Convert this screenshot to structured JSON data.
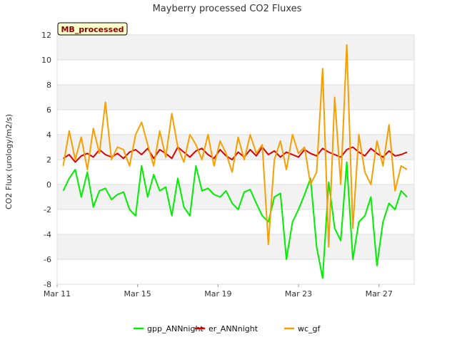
{
  "chart_data": {
    "type": "line",
    "title": "Mayberry processed CO2 Fluxes",
    "ylabel": "CO2 Flux (urology/m2/s)",
    "xlabel": "",
    "badge": "MB_processed",
    "ylim": [
      -8,
      12
    ],
    "yticks": [
      -8,
      -6,
      -4,
      -2,
      0,
      2,
      4,
      6,
      8,
      10,
      12
    ],
    "x_ticks": [
      {
        "day": 11,
        "label": "Mar 11"
      },
      {
        "day": 15,
        "label": "Mar 15"
      },
      {
        "day": 19,
        "label": "Mar 19"
      },
      {
        "day": 23,
        "label": "Mar 23"
      },
      {
        "day": 27,
        "label": "Mar 27"
      }
    ],
    "xlim_days": [
      11.0,
      28.75
    ],
    "grid": true,
    "legend_position": "bottom",
    "series": [
      {
        "name": "gpp_ANNnight",
        "color": "#00ee00",
        "x": [
          11.3,
          11.6,
          11.9,
          12.2,
          12.5,
          12.8,
          13.1,
          13.4,
          13.7,
          14.0,
          14.3,
          14.6,
          14.9,
          15.2,
          15.5,
          15.8,
          16.1,
          16.4,
          16.7,
          17.0,
          17.3,
          17.6,
          17.9,
          18.2,
          18.5,
          18.8,
          19.1,
          19.4,
          19.7,
          20.0,
          20.3,
          20.6,
          20.9,
          21.2,
          21.5,
          21.8,
          22.1,
          22.4,
          22.7,
          23.0,
          23.3,
          23.6,
          23.9,
          24.2,
          24.5,
          24.8,
          25.1,
          25.4,
          25.7,
          26.0,
          26.3,
          26.6,
          26.9,
          27.2,
          27.5,
          27.8,
          28.1,
          28.4
        ],
        "y": [
          -0.5,
          0.5,
          1.2,
          -1.0,
          1.0,
          -1.8,
          -0.5,
          -0.3,
          -1.2,
          -0.8,
          -0.6,
          -2.0,
          -2.5,
          1.5,
          -1.0,
          0.8,
          -0.5,
          -0.2,
          -2.5,
          0.5,
          -1.8,
          -2.5,
          1.5,
          -0.5,
          -0.3,
          -0.8,
          -1.0,
          -0.5,
          -1.5,
          -2.0,
          -0.6,
          -0.4,
          -1.5,
          -2.5,
          -3.0,
          -1.0,
          -0.7,
          -6.0,
          -3.0,
          -2.0,
          -0.8,
          0.5,
          -5.0,
          -7.5,
          0.2,
          -3.5,
          -4.5,
          1.8,
          -6.0,
          -3.0,
          -2.5,
          -1.0,
          -6.5,
          -3.0,
          -1.5,
          -2.0,
          -0.5,
          -1.0
        ]
      },
      {
        "name": "er_ANNnight",
        "color": "#dd0000",
        "x": [
          11.3,
          11.6,
          11.9,
          12.2,
          12.5,
          12.8,
          13.1,
          13.4,
          13.7,
          14.0,
          14.3,
          14.6,
          14.9,
          15.2,
          15.5,
          15.8,
          16.1,
          16.4,
          16.7,
          17.0,
          17.3,
          17.6,
          17.9,
          18.2,
          18.5,
          18.8,
          19.1,
          19.4,
          19.7,
          20.0,
          20.3,
          20.6,
          20.9,
          21.2,
          21.5,
          21.8,
          22.1,
          22.4,
          22.7,
          23.0,
          23.3,
          23.6,
          23.9,
          24.2,
          24.5,
          24.8,
          25.1,
          25.4,
          25.7,
          26.0,
          26.3,
          26.6,
          26.9,
          27.2,
          27.5,
          27.8,
          28.1,
          28.4
        ],
        "y": [
          2.1,
          2.4,
          1.8,
          2.3,
          2.5,
          2.2,
          2.8,
          2.4,
          2.2,
          2.5,
          2.1,
          2.6,
          2.8,
          2.4,
          2.9,
          2.1,
          2.8,
          2.5,
          2.1,
          3.0,
          2.6,
          2.2,
          2.7,
          2.9,
          2.4,
          2.1,
          2.8,
          2.3,
          2.0,
          2.6,
          2.2,
          2.8,
          2.3,
          3.0,
          2.4,
          2.7,
          2.2,
          2.6,
          2.4,
          2.2,
          2.8,
          2.5,
          2.3,
          2.9,
          2.6,
          2.4,
          2.2,
          2.8,
          3.0,
          2.6,
          2.3,
          2.9,
          2.5,
          2.2,
          2.7,
          2.3,
          2.4,
          2.6
        ]
      },
      {
        "name": "wc_gf",
        "color": "#f5a000",
        "x": [
          11.3,
          11.6,
          11.9,
          12.2,
          12.5,
          12.8,
          13.1,
          13.4,
          13.7,
          14.0,
          14.3,
          14.6,
          14.9,
          15.2,
          15.5,
          15.8,
          16.1,
          16.4,
          16.7,
          17.0,
          17.3,
          17.6,
          17.9,
          18.2,
          18.5,
          18.8,
          19.1,
          19.4,
          19.7,
          20.0,
          20.3,
          20.6,
          20.9,
          21.2,
          21.5,
          21.8,
          22.1,
          22.4,
          22.7,
          23.0,
          23.3,
          23.6,
          23.9,
          24.2,
          24.5,
          24.8,
          25.1,
          25.4,
          25.7,
          26.0,
          26.3,
          26.6,
          26.9,
          27.2,
          27.5,
          27.8,
          28.1,
          28.4
        ],
        "y": [
          1.5,
          4.3,
          2.0,
          3.8,
          1.2,
          4.5,
          2.5,
          6.6,
          2.0,
          3.0,
          2.8,
          1.5,
          4.0,
          5.0,
          3.2,
          1.5,
          4.3,
          2.2,
          5.7,
          3.0,
          1.8,
          4.0,
          3.2,
          2.0,
          4.0,
          1.5,
          3.5,
          2.5,
          1.0,
          3.8,
          2.0,
          4.0,
          2.5,
          3.2,
          -4.8,
          2.0,
          3.5,
          1.2,
          4.0,
          2.5,
          3.0,
          0.0,
          1.0,
          9.3,
          -5.0,
          7.0,
          0.0,
          11.2,
          -3.5,
          4.0,
          1.0,
          0.0,
          3.5,
          1.5,
          4.8,
          -0.5,
          1.5,
          1.2
        ]
      }
    ]
  }
}
